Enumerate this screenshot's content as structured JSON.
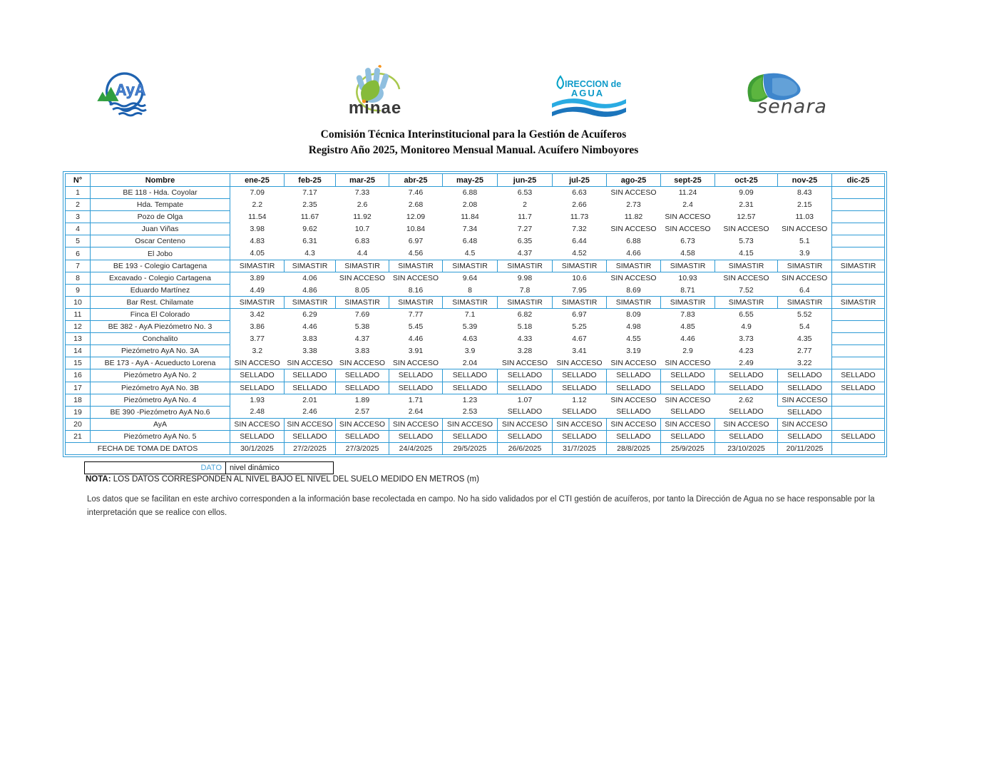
{
  "logos": {
    "aya": {
      "text": "AyA"
    },
    "minae": {
      "text": "minae"
    },
    "direccion_agua": {
      "line1": "IRECCION de",
      "line2": "AGUA"
    },
    "senara": {
      "text": "senara"
    }
  },
  "title": {
    "line1": "Comisión Técnica Interinstitucional para la Gestión de Acuíferos",
    "line2": "Registro Año 2025, Monitoreo Mensual Manual. Acuífero Nimboyores"
  },
  "table": {
    "columns": [
      "N°",
      "Nombre",
      "ene-25",
      "feb-25",
      "mar-25",
      "abr-25",
      "may-25",
      "jun-25",
      "jul-25",
      "ago-25",
      "sept-25",
      "oct-25",
      "nov-25",
      "dic-25"
    ],
    "rows": [
      {
        "n": "1",
        "nombre": "BE 118 - Hda. Coyolar",
        "values": [
          "7.09",
          "7.17",
          "7.33",
          "7.46",
          "6.88",
          "6.53",
          "6.63",
          "SIN ACCESO",
          "11.24",
          "9.09",
          "8.43",
          ""
        ]
      },
      {
        "n": "2",
        "nombre": "Hda. Tempate",
        "values": [
          "2.2",
          "2.35",
          "2.6",
          "2.68",
          "2.08",
          "2",
          "2.66",
          "2.73",
          "2.4",
          "2.31",
          "2.15",
          ""
        ]
      },
      {
        "n": "3",
        "nombre": "Pozo de Olga",
        "values": [
          "11.54",
          "11.67",
          "11.92",
          "12.09",
          "11.84",
          "11.7",
          "11.73",
          "11.82",
          "SIN ACCESO",
          "12.57",
          "11.03",
          ""
        ]
      },
      {
        "n": "4",
        "nombre": "Juan Viñas",
        "values": [
          "3.98",
          "9.62",
          "10.7",
          "10.84",
          "7.34",
          "7.27",
          "7.32",
          "SIN ACCESO",
          "SIN ACCESO",
          "SIN ACCESO",
          "SIN ACCESO",
          ""
        ]
      },
      {
        "n": "5",
        "nombre": "Oscar Centeno",
        "values": [
          "4.83",
          "6.31",
          "6.83",
          "6.97",
          "6.48",
          "6.35",
          "6.44",
          "6.88",
          "6.73",
          "5.73",
          "5.1",
          ""
        ]
      },
      {
        "n": "6",
        "nombre": "El Jobo",
        "values": [
          "4.05",
          "4.3",
          "4.4",
          "4.56",
          "4.5",
          "4.37",
          "4.52",
          "4.66",
          "4.58",
          "4.15",
          "3.9",
          ""
        ]
      },
      {
        "n": "7",
        "nombre": "BE 193 - Colegio Cartagena",
        "values": [
          "SIMASTIR",
          "SIMASTIR",
          "SIMASTIR",
          "SIMASTIR",
          "SIMASTIR",
          "SIMASTIR",
          "SIMASTIR",
          "SIMASTIR",
          "SIMASTIR",
          "SIMASTIR",
          "SIMASTIR",
          "SIMASTIR"
        ]
      },
      {
        "n": "8",
        "nombre": "Excavado - Colegio Cartagena",
        "values": [
          "3.89",
          "4.06",
          "SIN ACCESO",
          "SIN ACCESO",
          "9.64",
          "9.98",
          "10.6",
          "SIN ACCESO",
          "10.93",
          "SIN ACCESO",
          "SIN ACCESO",
          ""
        ]
      },
      {
        "n": "9",
        "nombre": "Eduardo Martínez",
        "values": [
          "4.49",
          "4.86",
          "8.05",
          "8.16",
          "8",
          "7.8",
          "7.95",
          "8.69",
          "8.71",
          "7.52",
          "6.4",
          ""
        ]
      },
      {
        "n": "10",
        "nombre": "Bar Rest. Chilamate",
        "values": [
          "SIMASTIR",
          "SIMASTIR",
          "SIMASTIR",
          "SIMASTIR",
          "SIMASTIR",
          "SIMASTIR",
          "SIMASTIR",
          "SIMASTIR",
          "SIMASTIR",
          "SIMASTIR",
          "SIMASTIR",
          "SIMASTIR"
        ]
      },
      {
        "n": "11",
        "nombre": "Finca El Colorado",
        "values": [
          "3.42",
          "6.29",
          "7.69",
          "7.77",
          "7.1",
          "6.82",
          "6.97",
          "8.09",
          "7.83",
          "6.55",
          "5.52",
          ""
        ]
      },
      {
        "n": "12",
        "nombre": "BE 382 - AyA Piezómetro No. 3",
        "values": [
          "3.86",
          "4.46",
          "5.38",
          "5.45",
          "5.39",
          "5.18",
          "5.25",
          "4.98",
          "4.85",
          "4.9",
          "5.4",
          ""
        ]
      },
      {
        "n": "13",
        "nombre": "Conchalito",
        "values": [
          "3.77",
          "3.83",
          "4.37",
          "4.46",
          "4.63",
          "4.33",
          "4.67",
          "4.55",
          "4.46",
          "3.73",
          "4.35",
          ""
        ]
      },
      {
        "n": "14",
        "nombre": "Piezómetro AyA No. 3A",
        "values": [
          "3.2",
          "3.38",
          "3.83",
          "3.91",
          "3.9",
          "3.28",
          "3.41",
          "3.19",
          "2.9",
          "4.23",
          "2.77",
          ""
        ]
      },
      {
        "n": "15",
        "nombre": "BE 173 - AyA - Acueducto Lorena",
        "values": [
          "SIN ACCESO",
          "SIN ACCESO",
          "SIN ACCESO",
          "SIN ACCESO",
          "2.04",
          "SIN ACCESO",
          "SIN ACCESO",
          "SIN ACCESO",
          "SIN ACCESO",
          "2.49",
          "3.22",
          ""
        ]
      },
      {
        "n": "16",
        "nombre": "Piezómetro AyA No. 2",
        "values": [
          "SELLADO",
          "SELLADO",
          "SELLADO",
          "SELLADO",
          "SELLADO",
          "SELLADO",
          "SELLADO",
          "SELLADO",
          "SELLADO",
          "SELLADO",
          "SELLADO",
          "SELLADO"
        ]
      },
      {
        "n": "17",
        "nombre": "Piezómetro AyA No. 3B",
        "values": [
          "SELLADO",
          "SELLADO",
          "SELLADO",
          "SELLADO",
          "SELLADO",
          "SELLADO",
          "SELLADO",
          "SELLADO",
          "SELLADO",
          "SELLADO",
          "SELLADO",
          "SELLADO"
        ]
      },
      {
        "n": "18",
        "nombre": "Piezómetro AyA No. 4",
        "values": [
          "1.93",
          "2.01",
          "1.89",
          "1.71",
          "1.23",
          "1.07",
          "1.12",
          "SIN ACCESO",
          "SIN ACCESO",
          "2.62",
          "SIN ACCESO",
          ""
        ],
        "boxed_cells": [
          10
        ]
      },
      {
        "n": "19",
        "nombre": "BE 390 -Piezómetro AyA No.6",
        "values": [
          "2.48",
          "2.46",
          "2.57",
          "2.64",
          "2.53",
          "SELLADO",
          "SELLADO",
          "SELLADO",
          "SELLADO",
          "SELLADO",
          "SELLADO",
          ""
        ]
      },
      {
        "n": "20",
        "nombre": "AyA",
        "values": [
          "SIN ACCESO",
          "SIN ACCESO",
          "SIN ACCESO",
          "SIN ACCESO",
          "SIN ACCESO",
          "SIN ACCESO",
          "SIN ACCESO",
          "SIN ACCESO",
          "SIN ACCESO",
          "SIN ACCESO",
          "SIN ACCESO",
          ""
        ]
      },
      {
        "n": "21",
        "nombre": "Piezómetro AyA No. 5",
        "values": [
          "SELLADO",
          "SELLADO",
          "SELLADO",
          "SELLADO",
          "SELLADO",
          "SELLADO",
          "SELLADO",
          "SELLADO",
          "SELLADO",
          "SELLADO",
          "SELLADO",
          "SELLADO"
        ]
      }
    ],
    "footer": {
      "label": "FECHA DE TOMA DE DATOS",
      "values": [
        "30/1/2025",
        "27/2/2025",
        "27/3/2025",
        "24/4/2025",
        "29/5/2025",
        "26/6/2025",
        "31/7/2025",
        "28/8/2025",
        "25/9/2025",
        "23/10/2025",
        "20/11/2025",
        ""
      ]
    }
  },
  "legend": {
    "label": "DATO",
    "value": "nivel dinámico"
  },
  "nota": {
    "label": "NOTA:",
    "text": "LOS DATOS CORRESPONDEN AL NIVEL BAJO EL NIVEL DEL SUELO MEDIDO EN METROS (m)"
  },
  "disclaimer": "Los datos que se facilitan en este archivo corresponden a la información base recolectada en campo. No ha sido validados por el CTI gestión de acuíferos, por tanto la Dirección de Agua no se hace responsable por la interpretación que se realice con ellos.",
  "colors": {
    "table_border": "#2e9bd5",
    "dato_label": "#4aa3d8"
  }
}
